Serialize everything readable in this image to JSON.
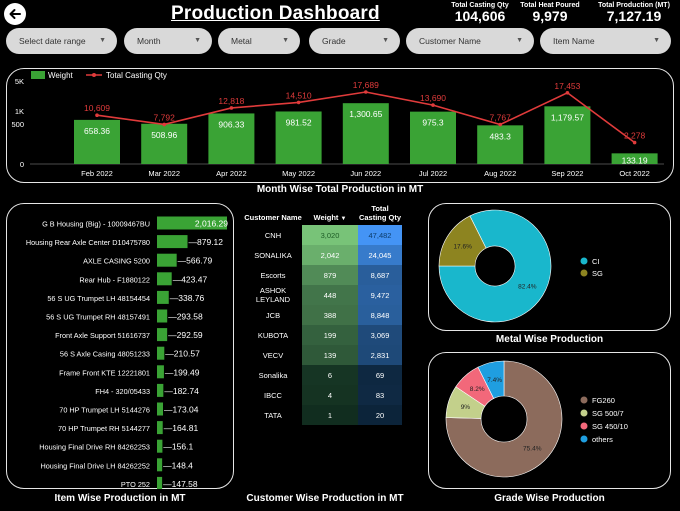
{
  "header": {
    "title": "Production Dashboard",
    "kpis": [
      {
        "label": "Total Casting Qty",
        "value": "104,606"
      },
      {
        "label": "Total Heat Poured",
        "value": "9,979"
      },
      {
        "label": "Total Production (MT)",
        "value": "7,127.19"
      }
    ]
  },
  "filters": [
    "Select date range",
    "Month",
    "Metal",
    "Grade",
    "Customer Name",
    "Item Name"
  ],
  "colors": {
    "weight_bar": "#3aa335",
    "qty_line": "#e03b3b",
    "ci": "#19b7cc",
    "sg": "#8d8420",
    "fg260": "#8c6b5c",
    "sg500": "#c3d08b",
    "sg450": "#f2687a",
    "others": "#1f9ee0"
  },
  "month_chart": {
    "title": "Month Wise Total Production in MT",
    "legend": {
      "weight": "Weight",
      "qty": "Total Casting Qty"
    },
    "y_ticks": [
      "5K",
      "1K",
      "500",
      "0"
    ]
  },
  "item_chart": {
    "title": "Item Wise Production in MT"
  },
  "customer_table": {
    "title": "Customer Wise Production in MT",
    "headers": {
      "name": "Customer Name",
      "weight": "Weight",
      "qty": "Total Casting Qty"
    },
    "sort_arrow": "▼",
    "rows": [
      {
        "name": "CNH",
        "weight": "3,020",
        "qty": "47,482"
      },
      {
        "name": "SONALIKA",
        "weight": "2,042",
        "qty": "24,045"
      },
      {
        "name": "Escorts",
        "weight": "879",
        "qty": "8,687"
      },
      {
        "name": "ASHOK LEYLAND",
        "weight": "448",
        "qty": "9,472"
      },
      {
        "name": "JCB",
        "weight": "388",
        "qty": "8,848"
      },
      {
        "name": "KUBOTA",
        "weight": "199",
        "qty": "3,069"
      },
      {
        "name": "VECV",
        "weight": "139",
        "qty": "2,831"
      },
      {
        "name": "Sonalika",
        "weight": "6",
        "qty": "69"
      },
      {
        "name": "IBCC",
        "weight": "4",
        "qty": "83"
      },
      {
        "name": "TATA",
        "weight": "1",
        "qty": "20"
      }
    ]
  },
  "metal_chart": {
    "title": "Metal Wise Production"
  },
  "grade_chart": {
    "title": "Grade Wise Production"
  },
  "chart_data": [
    {
      "type": "bar+line",
      "title": "Month Wise Total Production in MT",
      "categories": [
        "Feb 2022",
        "Mar 2022",
        "Apr 2022",
        "May 2022",
        "Jun 2022",
        "Jul 2022",
        "Aug 2022",
        "Sep 2022",
        "Oct 2022"
      ],
      "series": [
        {
          "name": "Weight",
          "type": "bar",
          "values": [
            658.36,
            508.96,
            906.33,
            981.52,
            1300.65,
            975.3,
            483.3,
            1179.57,
            133.19
          ],
          "labels": [
            "658.36",
            "508.96",
            "906.33",
            "981.52",
            "1,300.65",
            "975.3",
            "483.3",
            "1,179.57",
            "133.19"
          ]
        },
        {
          "name": "Total Casting Qty",
          "type": "line",
          "values": [
            10609,
            7792,
            12818,
            14510,
            17689,
            13690,
            7767,
            17453,
            2278
          ],
          "labels": [
            "10,609",
            "7,792",
            "12,818",
            "14,510",
            "17,689",
            "13,690",
            "7,767",
            "17,453",
            "2,278"
          ]
        }
      ]
    },
    {
      "type": "bar",
      "orientation": "horizontal",
      "title": "Item Wise Production in MT",
      "categories": [
        "G B Housing (Big) - 10009467BU",
        "Housing Rear Axle Center D10475780",
        "AXLE CASING 5200",
        "Rear Hub - F1880122",
        "56 S UG Trumpet LH 48154454",
        "56 S UG Trumpet RH 48157491",
        "Front Axle Support 51616737",
        "56 S Axle Casing 48051233",
        "Frame Front KTE 12221801",
        "FH4 - 320/05433",
        "70 HP Trumpet LH 5144276",
        "70 HP Trumpet RH 5144277",
        "Housing Final Drive RH 84262253",
        "Housing Final Drive LH 84262252",
        "PTO 252"
      ],
      "values": [
        2016.29,
        879.12,
        566.79,
        423.47,
        338.76,
        293.58,
        292.59,
        210.57,
        199.49,
        182.74,
        173.04,
        164.81,
        156.1,
        148.4,
        147.58
      ],
      "labels": [
        "2,016.29",
        "879.12",
        "566.79",
        "423.47",
        "338.76",
        "293.58",
        "292.59",
        "210.57",
        "199.49",
        "182.74",
        "173.04",
        "164.81",
        "156.1",
        "148.4",
        "147.58"
      ]
    },
    {
      "type": "pie",
      "title": "Metal Wise Production",
      "slices": [
        {
          "name": "CI",
          "value": 82.4,
          "label": "82.4%"
        },
        {
          "name": "SG",
          "value": 17.6,
          "label": "17.6%"
        }
      ]
    },
    {
      "type": "pie",
      "title": "Grade Wise Production",
      "slices": [
        {
          "name": "FG260",
          "value": 75.4,
          "label": "75.4%"
        },
        {
          "name": "SG 500/7",
          "value": 9.0,
          "label": "9%"
        },
        {
          "name": "SG 450/10",
          "value": 8.2,
          "label": "8.2%"
        },
        {
          "name": "others",
          "value": 7.4,
          "label": "7.4%"
        }
      ]
    }
  ]
}
